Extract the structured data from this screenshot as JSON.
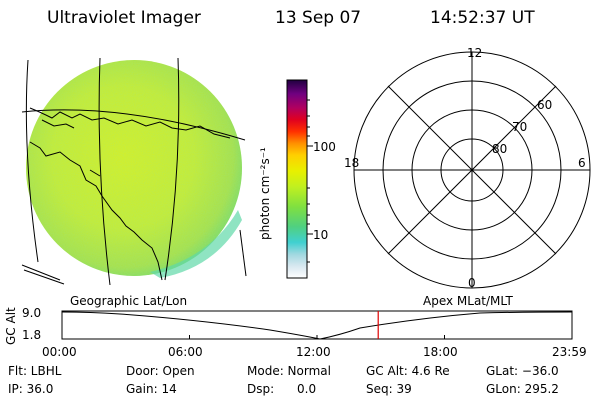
{
  "header": {
    "title": "Ultraviolet Imager",
    "date": "13 Sep 07",
    "time": "14:52:37 UT"
  },
  "colorbar": {
    "unit_label": "photon cm⁻²s⁻¹",
    "tick_100": "100",
    "tick_10": "10",
    "scale": "log",
    "colors": [
      "#ffffff",
      "#d8e8f0",
      "#a0d8e0",
      "#40d0d0",
      "#50d080",
      "#80e040",
      "#c0f020",
      "#e8f000",
      "#ffd000",
      "#ff9000",
      "#ff3000",
      "#e00020",
      "#b00060",
      "#700080",
      "#200040"
    ]
  },
  "polar_plot": {
    "label_12": "12",
    "label_18": "18",
    "label_6": "6",
    "label_0": "0",
    "ring_60": "60",
    "ring_70": "70",
    "ring_80": "80"
  },
  "timeline": {
    "left_label": "Geographic Lat/Lon",
    "right_label": "Apex MLat/MLT",
    "axis_label": "GC Alt",
    "y_top": "9.0",
    "y_bottom": "1.8",
    "ticks": [
      "00:00",
      "06:00",
      "12:00",
      "18:00",
      "23:59"
    ],
    "marker_time_hours": 14.88,
    "marker_color": "#e00000"
  },
  "footer": {
    "flt": "Flt: LBHL",
    "ip": "IP: 36.0",
    "door": "Door: Open",
    "gain": "Gain: 14",
    "mode": "Mode: Normal",
    "dsp": "Dsp:      0.0",
    "gc_alt": "GC Alt: 4.6 Re",
    "seq": "Seq: 39",
    "glat": "GLat: −36.0",
    "glon": "GLon: 295.2"
  }
}
